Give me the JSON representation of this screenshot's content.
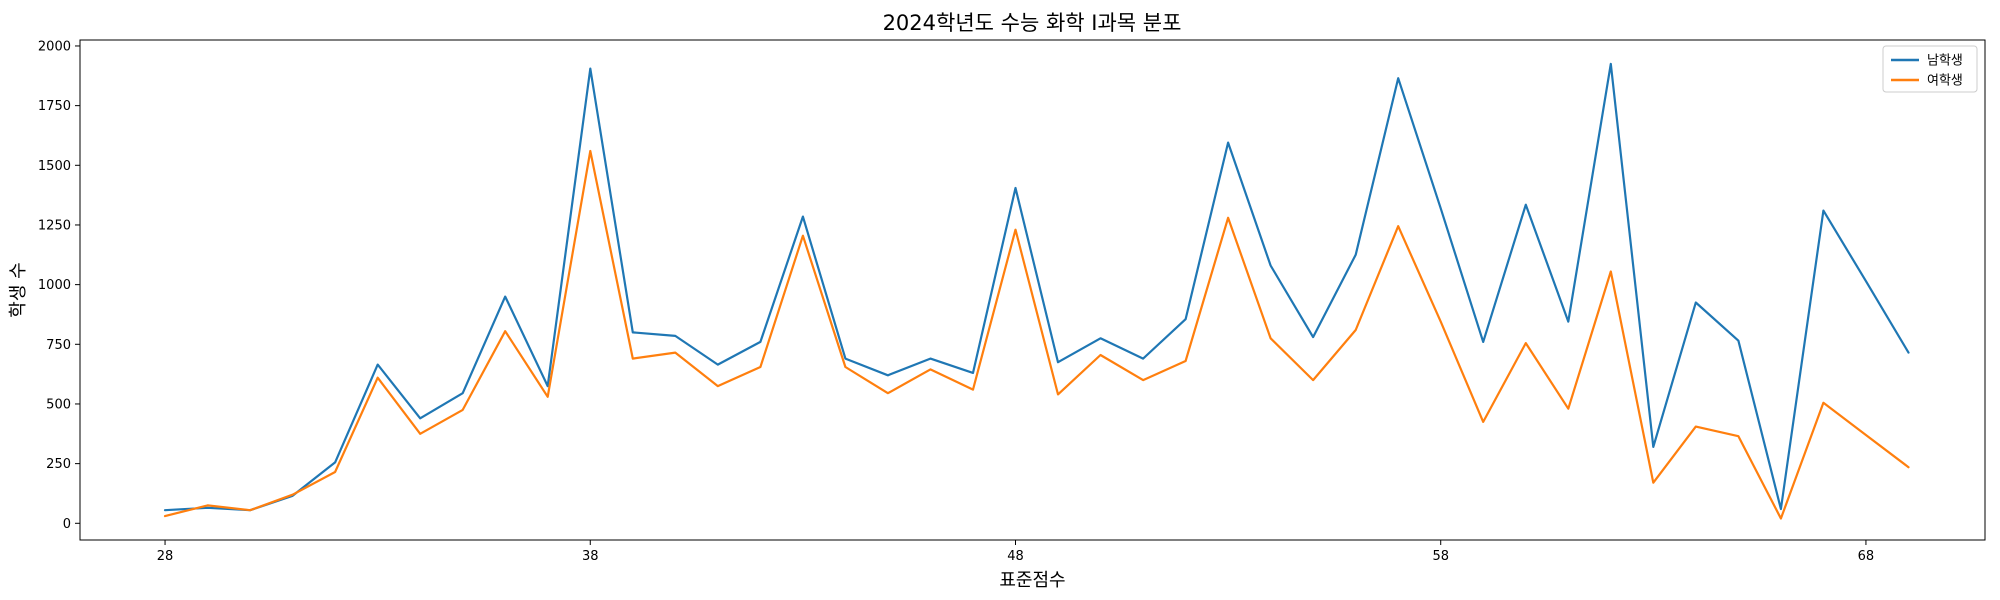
{
  "chart_data": {
    "type": "line",
    "title": "2024학년도 수능 화학 I과목 분포",
    "xlabel": "표준점수",
    "ylabel": "학생 수",
    "xlim": [
      26,
      70.8
    ],
    "ylim": [
      -70,
      2025
    ],
    "xticks": [
      28,
      38,
      48,
      58,
      68
    ],
    "yticks": [
      0,
      250,
      500,
      750,
      1000,
      1250,
      1500,
      1750,
      2000
    ],
    "legend": "top-right",
    "x": [
      28,
      29,
      30,
      31,
      32,
      33,
      34,
      35,
      36,
      37,
      38,
      39,
      40,
      41,
      42,
      43,
      44,
      45,
      46,
      47,
      48,
      49,
      50,
      51,
      52,
      53,
      54,
      55,
      56,
      57,
      58,
      59,
      60,
      61,
      62,
      63,
      64,
      65,
      66,
      67,
      68,
      69
    ],
    "series": [
      {
        "name": "남학생",
        "color": "#1f77b4",
        "values": [
          55,
          65,
          55,
          115,
          255,
          665,
          440,
          545,
          950,
          575,
          1905,
          800,
          785,
          665,
          760,
          1285,
          690,
          620,
          690,
          630,
          1405,
          675,
          775,
          690,
          855,
          1595,
          1080,
          780,
          1125,
          1865,
          1320,
          760,
          1335,
          845,
          1925,
          320,
          925,
          765,
          60,
          1310,
          1015,
          715
        ]
      },
      {
        "name": "여학생",
        "color": "#ff7f0e",
        "values": [
          30,
          75,
          55,
          120,
          215,
          610,
          375,
          475,
          805,
          530,
          1560,
          690,
          715,
          575,
          655,
          1205,
          655,
          545,
          645,
          560,
          1230,
          540,
          705,
          600,
          680,
          1280,
          775,
          600,
          810,
          1245,
          845,
          425,
          755,
          480,
          1055,
          170,
          405,
          365,
          20,
          505,
          370,
          235
        ]
      }
    ]
  }
}
